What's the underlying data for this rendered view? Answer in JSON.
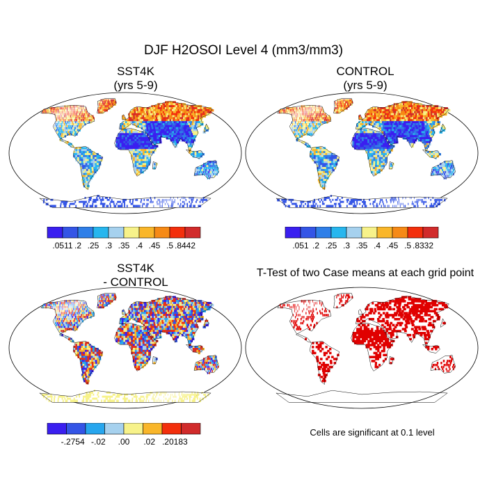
{
  "title": "DJF H2OSOI Level 4 (mm3/mm3)",
  "panels": [
    {
      "id": "sst4k",
      "title_line1": "SST4K",
      "title_line2": "(yrs 5-9)"
    },
    {
      "id": "control",
      "title_line1": "CONTROL",
      "title_line2": "(yrs 5-9)"
    },
    {
      "id": "diff",
      "title_line1": "SST4K",
      "title_line2": "- CONTROL"
    },
    {
      "id": "ttest",
      "title_line1": "T-Test of two Case means at each grid point",
      "title_line2": ""
    }
  ],
  "colorbars": {
    "sst4k": {
      "colors": [
        "#3a1ff0",
        "#3455e6",
        "#2f7fe8",
        "#27b6ee",
        "#a6d1ee",
        "#f7f28a",
        "#f9b62a",
        "#f68a16",
        "#f32f0c",
        "#d12b2b"
      ],
      "labels": [
        ".0511",
        ".2",
        ".25",
        ".3",
        ".35",
        ".4",
        ".45",
        ".5",
        ".8442"
      ]
    },
    "control": {
      "colors": [
        "#3a1ff0",
        "#3455e6",
        "#2f7fe8",
        "#27b6ee",
        "#a6d1ee",
        "#f7f28a",
        "#f9b62a",
        "#f68a16",
        "#f32f0c",
        "#d12b2b"
      ],
      "labels": [
        ".051",
        ".2",
        ".25",
        ".3",
        ".35",
        ".4",
        ".45",
        ".5",
        ".8332"
      ]
    },
    "diff": {
      "colors": [
        "#3a1ff0",
        "#3455e6",
        "#27a6ee",
        "#a6d1ee",
        "#f7f28a",
        "#f9b62a",
        "#f32f0c",
        "#d12b2b"
      ],
      "labels": [
        "-.2754",
        "-.02",
        ".00",
        ".02",
        ".20183"
      ]
    }
  },
  "note": "Cells are significant at 0.1 level"
}
